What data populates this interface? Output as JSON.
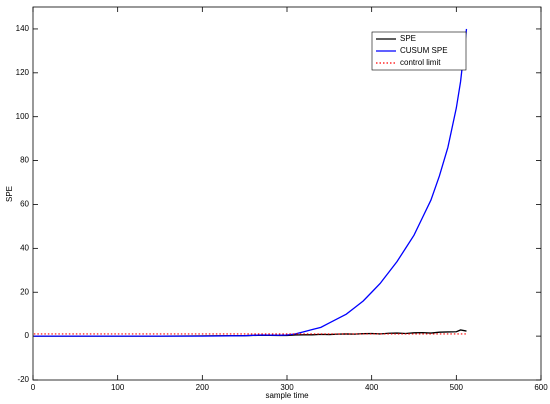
{
  "chart_data": {
    "type": "line",
    "x_label": "sample time",
    "y_label": "SPE",
    "x": [
      1,
      50,
      100,
      150,
      200,
      250,
      270,
      290,
      300,
      310,
      320,
      330,
      340,
      350,
      360,
      370,
      380,
      390,
      400,
      410,
      420,
      430,
      440,
      450,
      460,
      470,
      480,
      490,
      500,
      505,
      512
    ],
    "series": [
      {
        "name": "SPE",
        "color": "#000000",
        "style": "solid",
        "values": [
          0,
          0,
          0,
          0,
          0.1,
          0.2,
          0.4,
          0.3,
          0.3,
          0.5,
          0.6,
          0.6,
          0.8,
          0.7,
          0.9,
          1,
          0.9,
          1.1,
          1.2,
          1,
          1.3,
          1.4,
          1.2,
          1.5,
          1.6,
          1.4,
          1.8,
          1.9,
          2,
          2.8,
          2.3
        ]
      },
      {
        "name": "CUSUM SPE",
        "color": "#0000ff",
        "style": "solid",
        "values": [
          0,
          0,
          0,
          0,
          0,
          0.2,
          0.5,
          0.4,
          0.5,
          1,
          2,
          3,
          4,
          6,
          8,
          10,
          13,
          16,
          20,
          24,
          29,
          34,
          40,
          46,
          54,
          62,
          73,
          86,
          104,
          116,
          140
        ]
      },
      {
        "name": "control limit",
        "color": "#ff0000",
        "style": "dotted",
        "values": [
          1,
          1,
          1,
          1,
          1,
          1,
          1,
          1,
          1,
          1,
          1,
          1,
          1,
          1,
          1,
          1,
          1,
          1,
          1,
          1,
          1,
          1,
          1,
          1,
          1,
          1,
          1,
          1,
          1,
          1,
          1
        ]
      }
    ],
    "xlim": [
      0,
      600
    ],
    "xticks": [
      0,
      100,
      200,
      300,
      400,
      500,
      600
    ],
    "ylim": [
      -20,
      150
    ],
    "yticks": [
      -20,
      0,
      20,
      40,
      60,
      80,
      100,
      120,
      140
    ],
    "grid": false,
    "legend": "upper right"
  }
}
